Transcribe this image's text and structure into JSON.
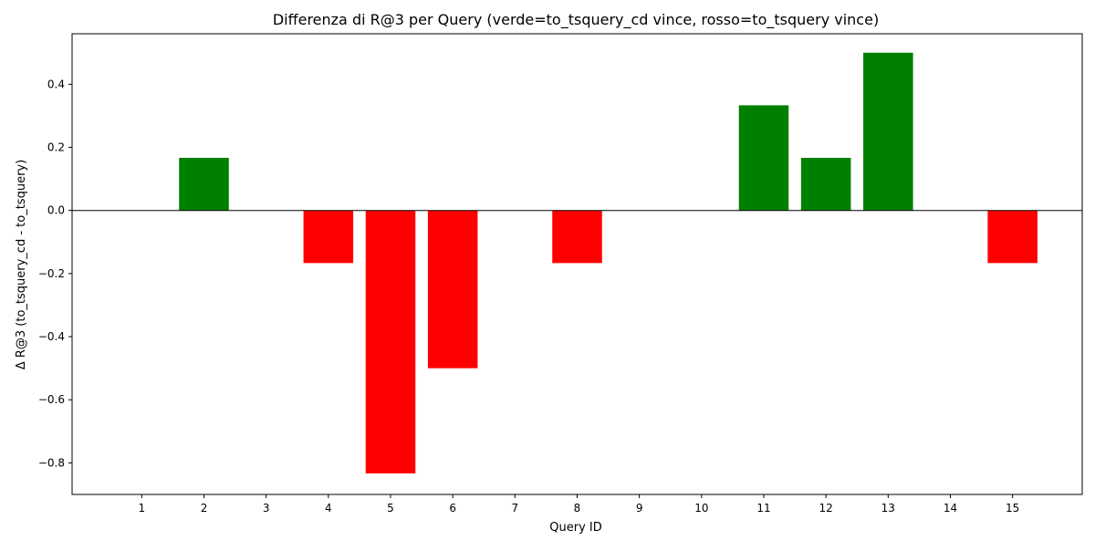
{
  "chart_data": {
    "type": "bar",
    "title": "Differenza di R@3 per Query (verde=to_tsquery_cd vince, rosso=to_tsquery vince)",
    "xlabel": "Query ID",
    "ylabel": "Δ R@3 (to_tsquery_cd - to_tsquery)",
    "categories": [
      "1",
      "2",
      "3",
      "4",
      "5",
      "6",
      "7",
      "8",
      "9",
      "10",
      "11",
      "12",
      "13",
      "14",
      "15"
    ],
    "values": [
      0,
      0.1667,
      0,
      -0.1667,
      -0.8333,
      -0.5,
      0,
      -0.1667,
      0,
      0,
      0.3333,
      0.1667,
      0.5,
      0,
      -0.1667
    ],
    "ylim": [
      -0.9,
      0.56
    ],
    "yticks": [
      -0.8,
      -0.6,
      -0.4,
      -0.2,
      0.0,
      0.2,
      0.4
    ],
    "ytick_labels": [
      "−0.8",
      "−0.6",
      "−0.4",
      "−0.2",
      "0.0",
      "0.2",
      "0.4"
    ],
    "grid": false,
    "legend": "none",
    "colors": {
      "positive": "#008000",
      "negative": "#ff0000",
      "zero_line": "#000000",
      "axes": "#000000",
      "background": "#ffffff"
    }
  }
}
